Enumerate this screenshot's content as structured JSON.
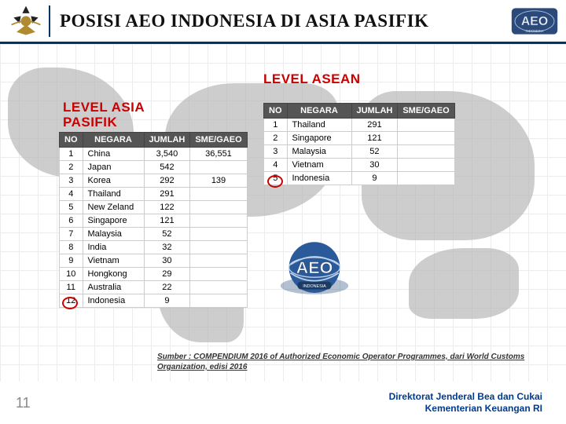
{
  "header": {
    "title": "POSISI AEO INDONESIA DI ASIA PASIFIK"
  },
  "labels": {
    "asean": "LEVEL ASEAN",
    "asia_pasifik_line1": "LEVEL ASIA",
    "asia_pasifik_line2": "PASIFIK"
  },
  "columns": {
    "no": "NO",
    "negara": "NEGARA",
    "jumlah": "JUMLAH",
    "sme": "SME/GAEO"
  },
  "asia_pasifik": {
    "rows": [
      {
        "no": "1",
        "negara": "China",
        "jumlah": "3,540",
        "sme": "36,551"
      },
      {
        "no": "2",
        "negara": "Japan",
        "jumlah": "542",
        "sme": ""
      },
      {
        "no": "3",
        "negara": "Korea",
        "jumlah": "292",
        "sme": "139"
      },
      {
        "no": "4",
        "negara": "Thailand",
        "jumlah": "291",
        "sme": ""
      },
      {
        "no": "5",
        "negara": "New Zeland",
        "jumlah": "122",
        "sme": ""
      },
      {
        "no": "6",
        "negara": "Singapore",
        "jumlah": "121",
        "sme": ""
      },
      {
        "no": "7",
        "negara": "Malaysia",
        "jumlah": "52",
        "sme": ""
      },
      {
        "no": "8",
        "negara": "India",
        "jumlah": "32",
        "sme": ""
      },
      {
        "no": "9",
        "negara": "Vietnam",
        "jumlah": "30",
        "sme": ""
      },
      {
        "no": "10",
        "negara": "Hongkong",
        "jumlah": "29",
        "sme": ""
      },
      {
        "no": "11",
        "negara": "Australia",
        "jumlah": "22",
        "sme": ""
      },
      {
        "no": "12",
        "negara": "Indonesia",
        "jumlah": "9",
        "sme": ""
      }
    ],
    "highlight_row_index": 11
  },
  "asean": {
    "rows": [
      {
        "no": "1",
        "negara": "Thailand",
        "jumlah": "291",
        "sme": ""
      },
      {
        "no": "2",
        "negara": "Singapore",
        "jumlah": "121",
        "sme": ""
      },
      {
        "no": "3",
        "negara": "Malaysia",
        "jumlah": "52",
        "sme": ""
      },
      {
        "no": "4",
        "negara": "Vietnam",
        "jumlah": "30",
        "sme": ""
      },
      {
        "no": "5",
        "negara": "Indonesia",
        "jumlah": "9",
        "sme": ""
      }
    ],
    "highlight_row_index": 4
  },
  "source": "Sumber : COMPENDIUM 2016 of Authorized Economic Operator Programmes, dari World Customs Organization, edisi 2016",
  "footer": {
    "page": "11",
    "line1": "Direktorat Jenderal Bea dan Cukai",
    "line2": "Kementerian Keuangan RI"
  },
  "colors": {
    "accent_red": "#cc0000",
    "header_rule": "#003366",
    "table_header_bg": "#555555",
    "footer_text": "#003a8c",
    "land": "#b8b8b8"
  }
}
